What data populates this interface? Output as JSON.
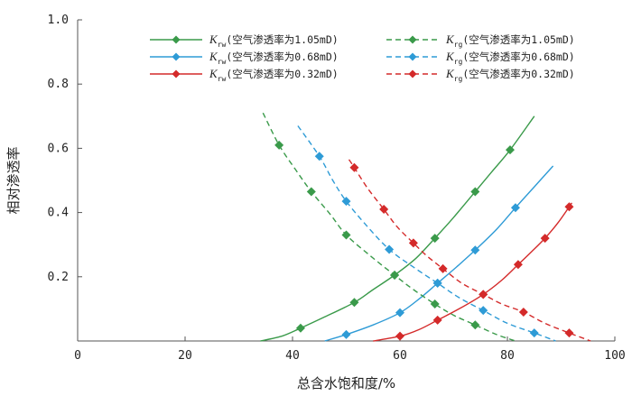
{
  "chart_data": {
    "type": "line",
    "title": "",
    "xlabel": "总含水饱和度/%",
    "ylabel": "相对渗透率",
    "xlim": [
      0,
      100
    ],
    "ylim": [
      0,
      1.0
    ],
    "xticks": [
      0,
      20,
      40,
      60,
      80,
      100
    ],
    "xtick_labels": [
      "0",
      "20",
      "40",
      "60",
      "80",
      "100"
    ],
    "yticks": [
      0.2,
      0.4,
      0.6,
      0.8,
      1.0
    ],
    "ytick_labels": [
      "0.2",
      "0.4",
      "0.6",
      "0.8",
      "1.0"
    ],
    "series": [
      {
        "name": "Krw(空气渗透率为1.05mD)",
        "symbol": "K",
        "sub": "rw",
        "text": "(空气渗透率为1.05mD)",
        "color": "#3a9a4a",
        "dash": false,
        "points": [
          [
            41.5,
            0.04
          ],
          [
            51.5,
            0.12
          ],
          [
            59,
            0.205
          ],
          [
            66.5,
            0.32
          ],
          [
            74,
            0.465
          ],
          [
            80.5,
            0.595
          ]
        ],
        "curve": [
          [
            34,
            0.0
          ],
          [
            38,
            0.015
          ],
          [
            41.5,
            0.04
          ],
          [
            46,
            0.075
          ],
          [
            51.5,
            0.12
          ],
          [
            55,
            0.16
          ],
          [
            59,
            0.205
          ],
          [
            63,
            0.258
          ],
          [
            66.5,
            0.32
          ],
          [
            70,
            0.385
          ],
          [
            74,
            0.465
          ],
          [
            77,
            0.525
          ],
          [
            80.5,
            0.595
          ],
          [
            85,
            0.7
          ]
        ]
      },
      {
        "name": "Krw(空气渗透率为0.68mD)",
        "symbol": "K",
        "sub": "rw",
        "text": "(空气渗透率为0.68mD)",
        "color": "#2e9bd6",
        "dash": false,
        "points": [
          [
            50,
            0.02
          ],
          [
            60,
            0.088
          ],
          [
            67,
            0.18
          ],
          [
            74,
            0.283
          ],
          [
            81.5,
            0.415
          ]
        ],
        "curve": [
          [
            46,
            0.0
          ],
          [
            50,
            0.02
          ],
          [
            55,
            0.05
          ],
          [
            60,
            0.088
          ],
          [
            63.5,
            0.13
          ],
          [
            67,
            0.18
          ],
          [
            70.5,
            0.23
          ],
          [
            74,
            0.283
          ],
          [
            78,
            0.348
          ],
          [
            81.5,
            0.415
          ],
          [
            85,
            0.48
          ],
          [
            88.5,
            0.545
          ]
        ]
      },
      {
        "name": "Krw(空气渗透率为0.32mD)",
        "symbol": "K",
        "sub": "rw",
        "text": "(空气渗透率为0.32mD)",
        "color": "#d42a2a",
        "dash": false,
        "points": [
          [
            60,
            0.015
          ],
          [
            67,
            0.065
          ],
          [
            75.5,
            0.145
          ],
          [
            82,
            0.238
          ],
          [
            87,
            0.32
          ],
          [
            91.5,
            0.418
          ]
        ],
        "curve": [
          [
            55,
            0.0
          ],
          [
            60,
            0.015
          ],
          [
            63.5,
            0.035
          ],
          [
            67,
            0.065
          ],
          [
            71,
            0.1
          ],
          [
            75.5,
            0.145
          ],
          [
            79,
            0.19
          ],
          [
            82,
            0.238
          ],
          [
            84.5,
            0.278
          ],
          [
            87,
            0.32
          ],
          [
            89.5,
            0.37
          ],
          [
            92,
            0.43
          ]
        ]
      },
      {
        "name": "Krg(空气渗透率为1.05mD)",
        "symbol": "K",
        "sub": "rg",
        "text": "(空气渗透率为1.05mD)",
        "color": "#3a9a4a",
        "dash": true,
        "points": [
          [
            37.5,
            0.61
          ],
          [
            43.5,
            0.465
          ],
          [
            50,
            0.33
          ],
          [
            59,
            0.205
          ],
          [
            66.5,
            0.115
          ],
          [
            74,
            0.05
          ]
        ],
        "curve": [
          [
            34.5,
            0.71
          ],
          [
            37.5,
            0.61
          ],
          [
            40.5,
            0.535
          ],
          [
            43.5,
            0.465
          ],
          [
            47,
            0.395
          ],
          [
            50,
            0.33
          ],
          [
            54.5,
            0.265
          ],
          [
            59,
            0.205
          ],
          [
            62.5,
            0.16
          ],
          [
            66.5,
            0.115
          ],
          [
            70,
            0.08
          ],
          [
            74,
            0.05
          ],
          [
            78,
            0.02
          ],
          [
            81.5,
            0.0
          ]
        ]
      },
      {
        "name": "Krg(空气渗透率为0.68mD)",
        "symbol": "K",
        "sub": "rg",
        "text": "(空气渗透率为0.68mD)",
        "color": "#2e9bd6",
        "dash": true,
        "points": [
          [
            45,
            0.575
          ],
          [
            50,
            0.435
          ],
          [
            58,
            0.285
          ],
          [
            67,
            0.18
          ],
          [
            75.5,
            0.095
          ],
          [
            85,
            0.025
          ]
        ],
        "curve": [
          [
            41,
            0.67
          ],
          [
            45,
            0.575
          ],
          [
            47.5,
            0.5
          ],
          [
            50,
            0.435
          ],
          [
            54,
            0.355
          ],
          [
            58,
            0.285
          ],
          [
            62.5,
            0.23
          ],
          [
            67,
            0.18
          ],
          [
            71,
            0.135
          ],
          [
            75.5,
            0.095
          ],
          [
            80,
            0.055
          ],
          [
            85,
            0.025
          ],
          [
            89,
            0.0
          ]
        ]
      },
      {
        "name": "Krg(空气渗透率为0.32mD)",
        "symbol": "K",
        "sub": "rg",
        "text": "(空气渗透率为0.32mD)",
        "color": "#d42a2a",
        "dash": true,
        "points": [
          [
            51.5,
            0.54
          ],
          [
            57,
            0.41
          ],
          [
            62.5,
            0.305
          ],
          [
            68,
            0.225
          ],
          [
            75.5,
            0.145
          ],
          [
            83,
            0.09
          ],
          [
            91.5,
            0.025
          ]
        ],
        "curve": [
          [
            50.5,
            0.565
          ],
          [
            51.5,
            0.54
          ],
          [
            54,
            0.475
          ],
          [
            57,
            0.41
          ],
          [
            59.5,
            0.355
          ],
          [
            62.5,
            0.305
          ],
          [
            65,
            0.265
          ],
          [
            68,
            0.225
          ],
          [
            71.5,
            0.18
          ],
          [
            75.5,
            0.145
          ],
          [
            79,
            0.115
          ],
          [
            83,
            0.09
          ],
          [
            87,
            0.055
          ],
          [
            91.5,
            0.025
          ],
          [
            95.5,
            0.0
          ]
        ]
      }
    ],
    "legend": {
      "position": "top-right",
      "columns": 2
    }
  }
}
